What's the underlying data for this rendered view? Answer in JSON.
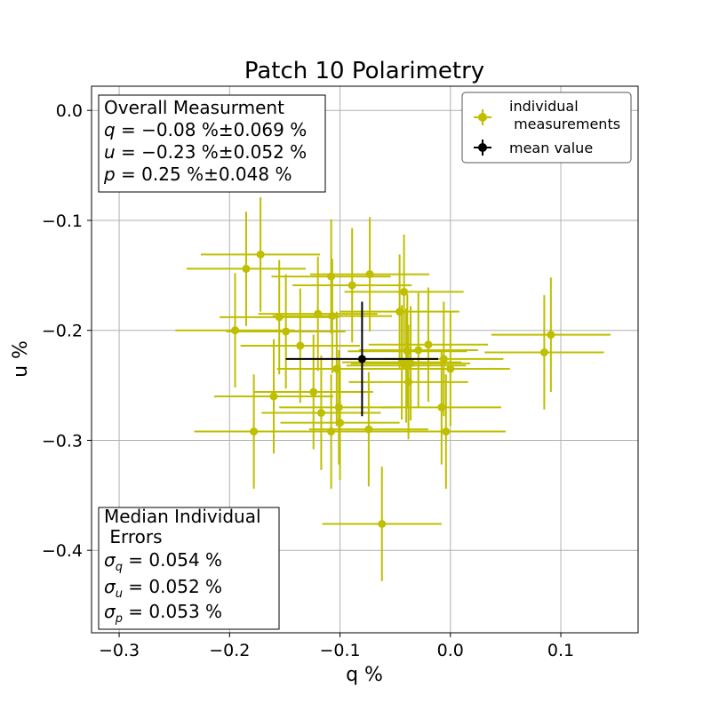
{
  "chart_data": {
    "type": "scatter",
    "title": "Patch 10 Polarimetry",
    "xlabel": "q %",
    "ylabel": "u %",
    "xlim": [
      -0.325,
      0.17
    ],
    "ylim": [
      -0.475,
      0.022
    ],
    "xticks": [
      -0.3,
      -0.2,
      -0.1,
      0.0,
      0.1
    ],
    "xtick_labels": [
      "−0.3",
      "−0.2",
      "−0.1",
      "0.0",
      "0.1"
    ],
    "yticks": [
      0.0,
      -0.1,
      -0.2,
      -0.3,
      -0.4
    ],
    "ytick_labels": [
      "0.0",
      "−0.1",
      "−0.2",
      "−0.3",
      "−0.4"
    ],
    "grid": true,
    "legend_position": "top-right",
    "colors": {
      "individual": "#bfbf00",
      "mean": "#000000"
    },
    "series": [
      {
        "name": "individual\n measurements",
        "points": [
          {
            "q": -0.185,
            "u": -0.144,
            "qerr": 0.054,
            "uerr": 0.052
          },
          {
            "q": -0.172,
            "u": -0.131,
            "qerr": 0.054,
            "uerr": 0.052
          },
          {
            "q": -0.155,
            "u": -0.188,
            "qerr": 0.054,
            "uerr": 0.052
          },
          {
            "q": -0.149,
            "u": -0.201,
            "qerr": 0.054,
            "uerr": 0.052
          },
          {
            "q": -0.195,
            "u": -0.2,
            "qerr": 0.054,
            "uerr": 0.052
          },
          {
            "q": -0.136,
            "u": -0.214,
            "qerr": 0.054,
            "uerr": 0.052
          },
          {
            "q": -0.12,
            "u": -0.185,
            "qerr": 0.054,
            "uerr": 0.052
          },
          {
            "q": -0.108,
            "u": -0.151,
            "qerr": 0.054,
            "uerr": 0.052
          },
          {
            "q": -0.107,
            "u": -0.187,
            "qerr": 0.054,
            "uerr": 0.052
          },
          {
            "q": -0.089,
            "u": -0.159,
            "qerr": 0.054,
            "uerr": 0.052
          },
          {
            "q": -0.073,
            "u": -0.149,
            "qerr": 0.054,
            "uerr": 0.052
          },
          {
            "q": -0.046,
            "u": -0.183,
            "qerr": 0.054,
            "uerr": 0.052
          },
          {
            "q": -0.042,
            "u": -0.165,
            "qerr": 0.054,
            "uerr": 0.052
          },
          {
            "q": -0.039,
            "u": -0.219,
            "qerr": 0.054,
            "uerr": 0.052
          },
          {
            "q": -0.044,
            "u": -0.229,
            "qerr": 0.054,
            "uerr": 0.052
          },
          {
            "q": -0.04,
            "u": -0.232,
            "qerr": 0.054,
            "uerr": 0.052
          },
          {
            "q": -0.038,
            "u": -0.247,
            "qerr": 0.054,
            "uerr": 0.052
          },
          {
            "q": -0.036,
            "u": -0.23,
            "qerr": 0.054,
            "uerr": 0.052
          },
          {
            "q": -0.029,
            "u": -0.218,
            "qerr": 0.054,
            "uerr": 0.052
          },
          {
            "q": -0.02,
            "u": -0.213,
            "qerr": 0.054,
            "uerr": 0.052
          },
          {
            "q": -0.008,
            "u": -0.27,
            "qerr": 0.054,
            "uerr": 0.052
          },
          {
            "q": -0.006,
            "u": -0.226,
            "qerr": 0.054,
            "uerr": 0.052
          },
          {
            "q": -0.004,
            "u": -0.292,
            "qerr": 0.054,
            "uerr": 0.052
          },
          {
            "q": 0.0,
            "u": -0.235,
            "qerr": 0.054,
            "uerr": 0.052
          },
          {
            "q": -0.103,
            "u": -0.235,
            "qerr": 0.054,
            "uerr": 0.052
          },
          {
            "q": -0.101,
            "u": -0.27,
            "qerr": 0.054,
            "uerr": 0.052
          },
          {
            "q": -0.1,
            "u": -0.284,
            "qerr": 0.054,
            "uerr": 0.052
          },
          {
            "q": -0.108,
            "u": -0.292,
            "qerr": 0.054,
            "uerr": 0.052
          },
          {
            "q": -0.074,
            "u": -0.29,
            "qerr": 0.054,
            "uerr": 0.052
          },
          {
            "q": -0.124,
            "u": -0.256,
            "qerr": 0.054,
            "uerr": 0.052
          },
          {
            "q": -0.117,
            "u": -0.275,
            "qerr": 0.054,
            "uerr": 0.052
          },
          {
            "q": -0.16,
            "u": -0.26,
            "qerr": 0.054,
            "uerr": 0.052
          },
          {
            "q": -0.178,
            "u": -0.292,
            "qerr": 0.054,
            "uerr": 0.052
          },
          {
            "q": -0.062,
            "u": -0.376,
            "qerr": 0.054,
            "uerr": 0.052
          },
          {
            "q": 0.085,
            "u": -0.22,
            "qerr": 0.054,
            "uerr": 0.052
          },
          {
            "q": 0.091,
            "u": -0.204,
            "qerr": 0.054,
            "uerr": 0.052
          }
        ]
      },
      {
        "name": "mean value",
        "points": [
          {
            "q": -0.08,
            "u": -0.226,
            "qerr": 0.069,
            "uerr": 0.052
          }
        ]
      }
    ],
    "annotations": {
      "overall": {
        "title": "Overall Measurment",
        "q_sym": "q",
        "q_val": " = −0.08 %±0.069 %",
        "u_sym": "u",
        "u_val": " = −0.23 %±0.052 %",
        "p_sym": "p",
        "p_val": " = 0.25 %±0.048 %"
      },
      "median": {
        "title1": "Median Individual",
        "title2": " Errors",
        "sigma": "σ",
        "sq_sub": "q",
        "sq_val": " = 0.054 %",
        "su_sub": "u",
        "su_val": " = 0.052 %",
        "sp_sub": "p",
        "sp_val": " = 0.053 %"
      }
    }
  }
}
